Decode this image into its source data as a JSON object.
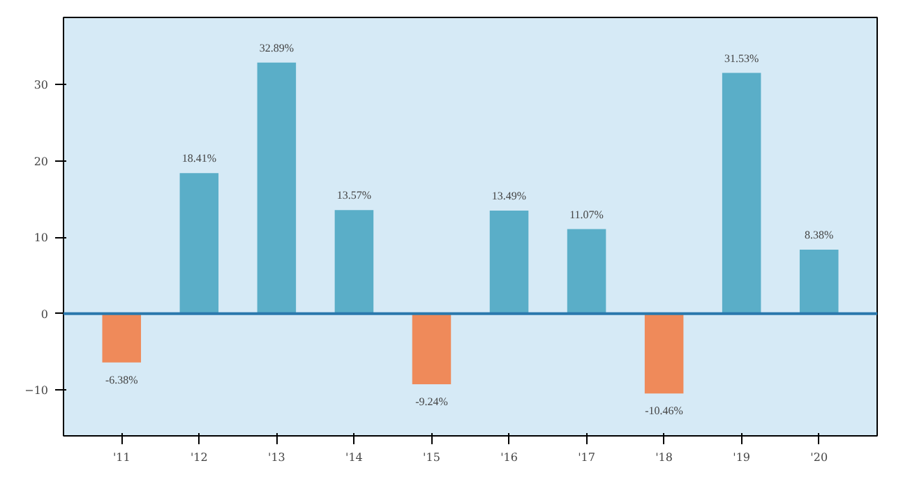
{
  "chart_data": {
    "type": "bar",
    "categories": [
      "'11",
      "'12",
      "'13",
      "'14",
      "'15",
      "'16",
      "'17",
      "'18",
      "'19",
      "'20"
    ],
    "values": [
      -6.38,
      18.41,
      32.89,
      13.57,
      -9.24,
      13.49,
      11.07,
      -10.46,
      31.53,
      8.38
    ],
    "value_labels": [
      "-6.38%",
      "18.41%",
      "32.89%",
      "13.57%",
      "-9.24%",
      "13.49%",
      "11.07%",
      "-10.46%",
      "31.53%",
      "8.38%"
    ],
    "colors": [
      "#ef8a5a",
      "#5aaec8",
      "#5aaec8",
      "#5aaec8",
      "#ef8a5a",
      "#5aaec8",
      "#5aaec8",
      "#ef8a5a",
      "#5aaec8",
      "#5aaec8"
    ],
    "ylim": [
      -16,
      38.8
    ],
    "yticks": [
      -10,
      0,
      10,
      20,
      30
    ],
    "grid": false,
    "ref_lines": [
      {
        "axis": "y",
        "value": 0,
        "color": "#2a78ad"
      }
    ]
  }
}
